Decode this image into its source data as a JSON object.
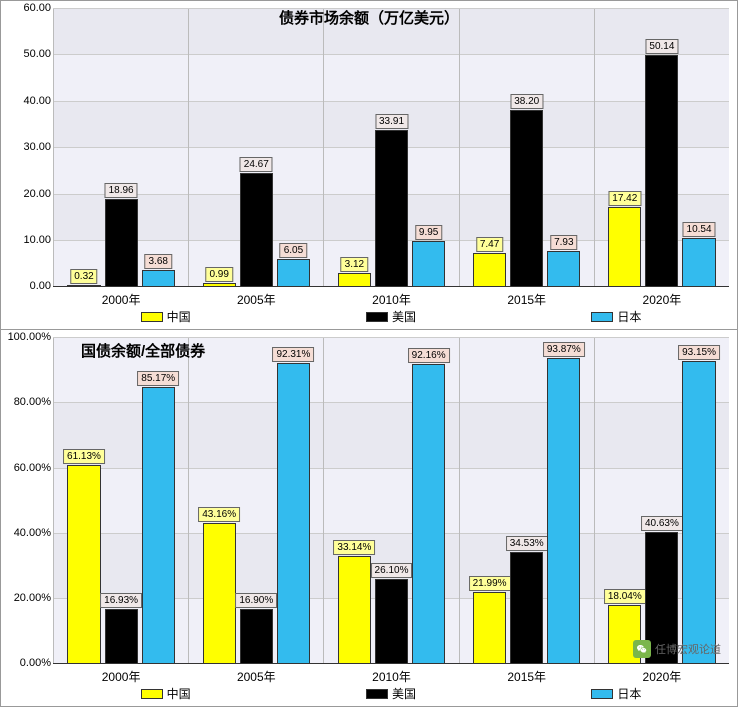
{
  "colors": {
    "china": "#ffff00",
    "usa": "#000000",
    "japan": "#33bbee",
    "bg1": "#f0f0f8",
    "bg2": "#e8e8f0",
    "grid": "#cccccc",
    "label_china": "#ffff99",
    "label_usa": "#f0e8e8",
    "label_japan": "#f5ddd5",
    "axis_text": "#333333"
  },
  "watermark": "任博宏观论道",
  "chart1": {
    "title": "债券市场余额（万亿美元）",
    "type": "bar",
    "ylim": [
      0,
      60
    ],
    "ytick_step": 10,
    "y_format": "fixed2",
    "categories": [
      "2000年",
      "2005年",
      "2010年",
      "2015年",
      "2020年"
    ],
    "series": [
      {
        "name": "中国",
        "color_key": "china",
        "label_bg_key": "label_china",
        "values": [
          0.32,
          0.99,
          3.12,
          7.47,
          17.42
        ]
      },
      {
        "name": "美国",
        "color_key": "usa",
        "label_bg_key": "label_usa",
        "values": [
          18.96,
          24.67,
          33.91,
          38.2,
          50.14
        ]
      },
      {
        "name": "日本",
        "color_key": "japan",
        "label_bg_key": "label_japan",
        "values": [
          3.68,
          6.05,
          9.95,
          7.93,
          10.54
        ]
      }
    ]
  },
  "chart2": {
    "title": "国债余额/全部债券",
    "type": "bar",
    "ylim": [
      0,
      100
    ],
    "ytick_step": 20,
    "y_format": "pct2",
    "categories": [
      "2000年",
      "2005年",
      "2010年",
      "2015年",
      "2020年"
    ],
    "series": [
      {
        "name": "中国",
        "color_key": "china",
        "label_bg_key": "label_china",
        "values": [
          61.13,
          43.16,
          33.14,
          21.99,
          18.04
        ]
      },
      {
        "name": "美国",
        "color_key": "usa",
        "label_bg_key": "label_usa",
        "values": [
          16.93,
          16.9,
          26.1,
          34.53,
          40.63
        ]
      },
      {
        "name": "日本",
        "color_key": "japan",
        "label_bg_key": "label_japan",
        "values": [
          85.17,
          92.31,
          92.16,
          93.87,
          93.15
        ]
      }
    ]
  }
}
